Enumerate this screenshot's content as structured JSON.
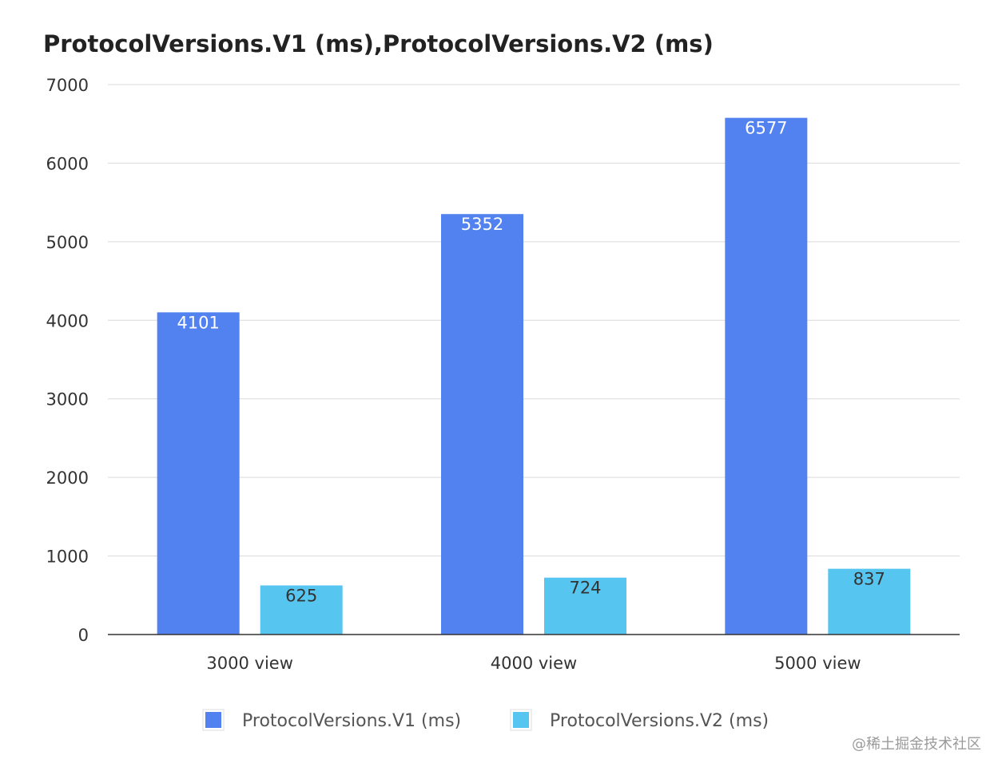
{
  "chart_data": {
    "type": "bar",
    "title": "ProtocolVersions.V1 (ms),ProtocolVersions.V2 (ms)",
    "xlabel": "",
    "ylabel": "",
    "categories": [
      "3000 view",
      "4000 view",
      "5000 view"
    ],
    "series": [
      {
        "name": "ProtocolVersions.V1 (ms)",
        "values": [
          4101,
          5352,
          6577
        ],
        "color": "#5282ef",
        "label_color": "#ffffff"
      },
      {
        "name": "ProtocolVersions.V2 (ms)",
        "values": [
          625,
          724,
          837
        ],
        "color": "#56c5ef",
        "label_color": "#333333"
      }
    ],
    "ylim": [
      0,
      7000
    ],
    "yticks": [
      0,
      1000,
      2000,
      3000,
      4000,
      5000,
      6000,
      7000
    ],
    "grid": true,
    "legend": "bottom-center"
  },
  "watermark": "@稀土掘金技术社区"
}
